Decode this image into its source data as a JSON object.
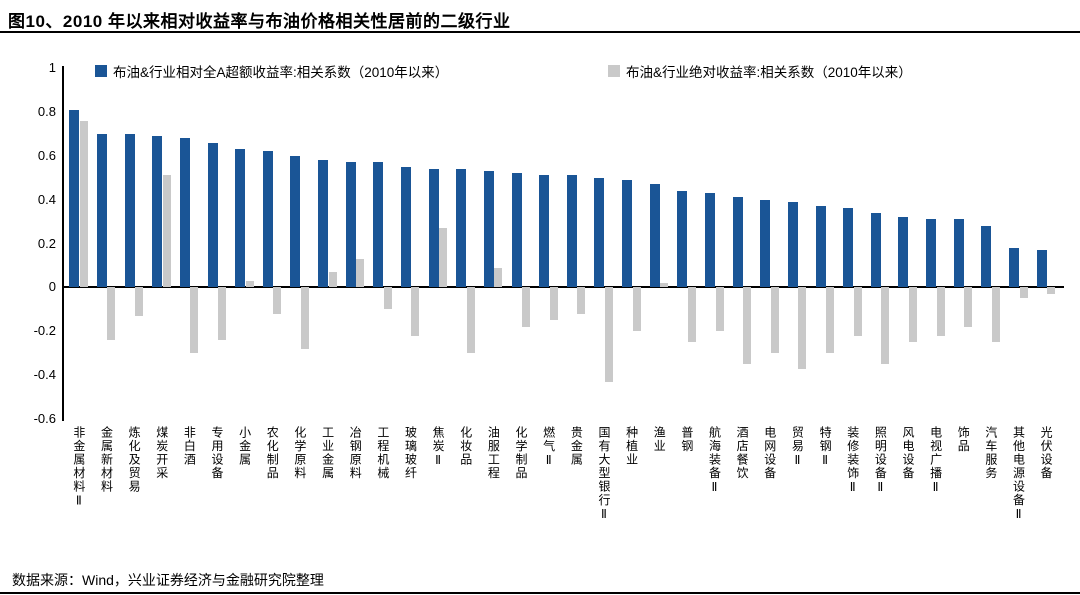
{
  "title": "图10、2010 年以来相对收益率与布油价格相关性居前的二级行业",
  "source_note": "数据来源：Wind，兴业证券经济与金融研究院整理",
  "colors": {
    "primary_blue": "#1A5596",
    "secondary_gray": "#C9C9C9",
    "axis_black": "#000000",
    "background": "#FFFFFF"
  },
  "chart_data": {
    "type": "bar",
    "title": "",
    "xlabel": "",
    "ylabel": "",
    "grid": false,
    "legend_position": "top",
    "ylim": [
      -0.6,
      1
    ],
    "yticks": [
      "1",
      "0.8",
      "0.6",
      "0.4",
      "0.2",
      "0",
      "-0.2",
      "-0.4",
      "-0.6"
    ],
    "categories": [
      "非金属材料Ⅱ",
      "金属新材料",
      "炼化及贸易",
      "煤炭开采",
      "非白酒",
      "专用设备",
      "小金属",
      "农化制品",
      "化学原料",
      "工业金属",
      "冶钢原料",
      "工程机械",
      "玻璃玻纤",
      "焦炭Ⅱ",
      "化妆品",
      "油服工程",
      "化学制品",
      "燃气Ⅱ",
      "贵金属",
      "国有大型银行Ⅱ",
      "种植业",
      "渔业",
      "普钢",
      "航海装备Ⅱ",
      "酒店餐饮",
      "电网设备",
      "贸易Ⅱ",
      "特钢Ⅱ",
      "装修装饰Ⅱ",
      "照明设备Ⅱ",
      "风电设备",
      "电视广播Ⅱ",
      "饰品",
      "汽车服务",
      "其他电源设备Ⅱ",
      "光伏设备"
    ],
    "series": [
      {
        "name": "布油&行业相对全A超额收益率:相关系数（2010年以来）",
        "color": "#1A5596",
        "values": [
          0.81,
          0.7,
          0.7,
          0.69,
          0.68,
          0.66,
          0.63,
          0.62,
          0.6,
          0.58,
          0.57,
          0.57,
          0.55,
          0.54,
          0.54,
          0.53,
          0.52,
          0.51,
          0.51,
          0.5,
          0.49,
          0.47,
          0.44,
          0.43,
          0.41,
          0.4,
          0.39,
          0.37,
          0.36,
          0.34,
          0.32,
          0.31,
          0.31,
          0.28,
          0.18,
          0.17
        ]
      },
      {
        "name": "布油&行业绝对收益率:相关系数（2010年以来）",
        "color": "#C9C9C9",
        "values": [
          0.76,
          -0.24,
          -0.13,
          0.51,
          -0.3,
          -0.24,
          0.03,
          -0.12,
          -0.28,
          0.07,
          0.13,
          -0.1,
          -0.22,
          0.27,
          -0.3,
          0.09,
          -0.18,
          -0.15,
          -0.12,
          -0.43,
          -0.2,
          0.02,
          -0.25,
          -0.2,
          -0.35,
          -0.3,
          -0.37,
          -0.3,
          -0.22,
          -0.35,
          -0.25,
          -0.22,
          -0.18,
          -0.25,
          -0.05,
          -0.03
        ]
      }
    ]
  }
}
